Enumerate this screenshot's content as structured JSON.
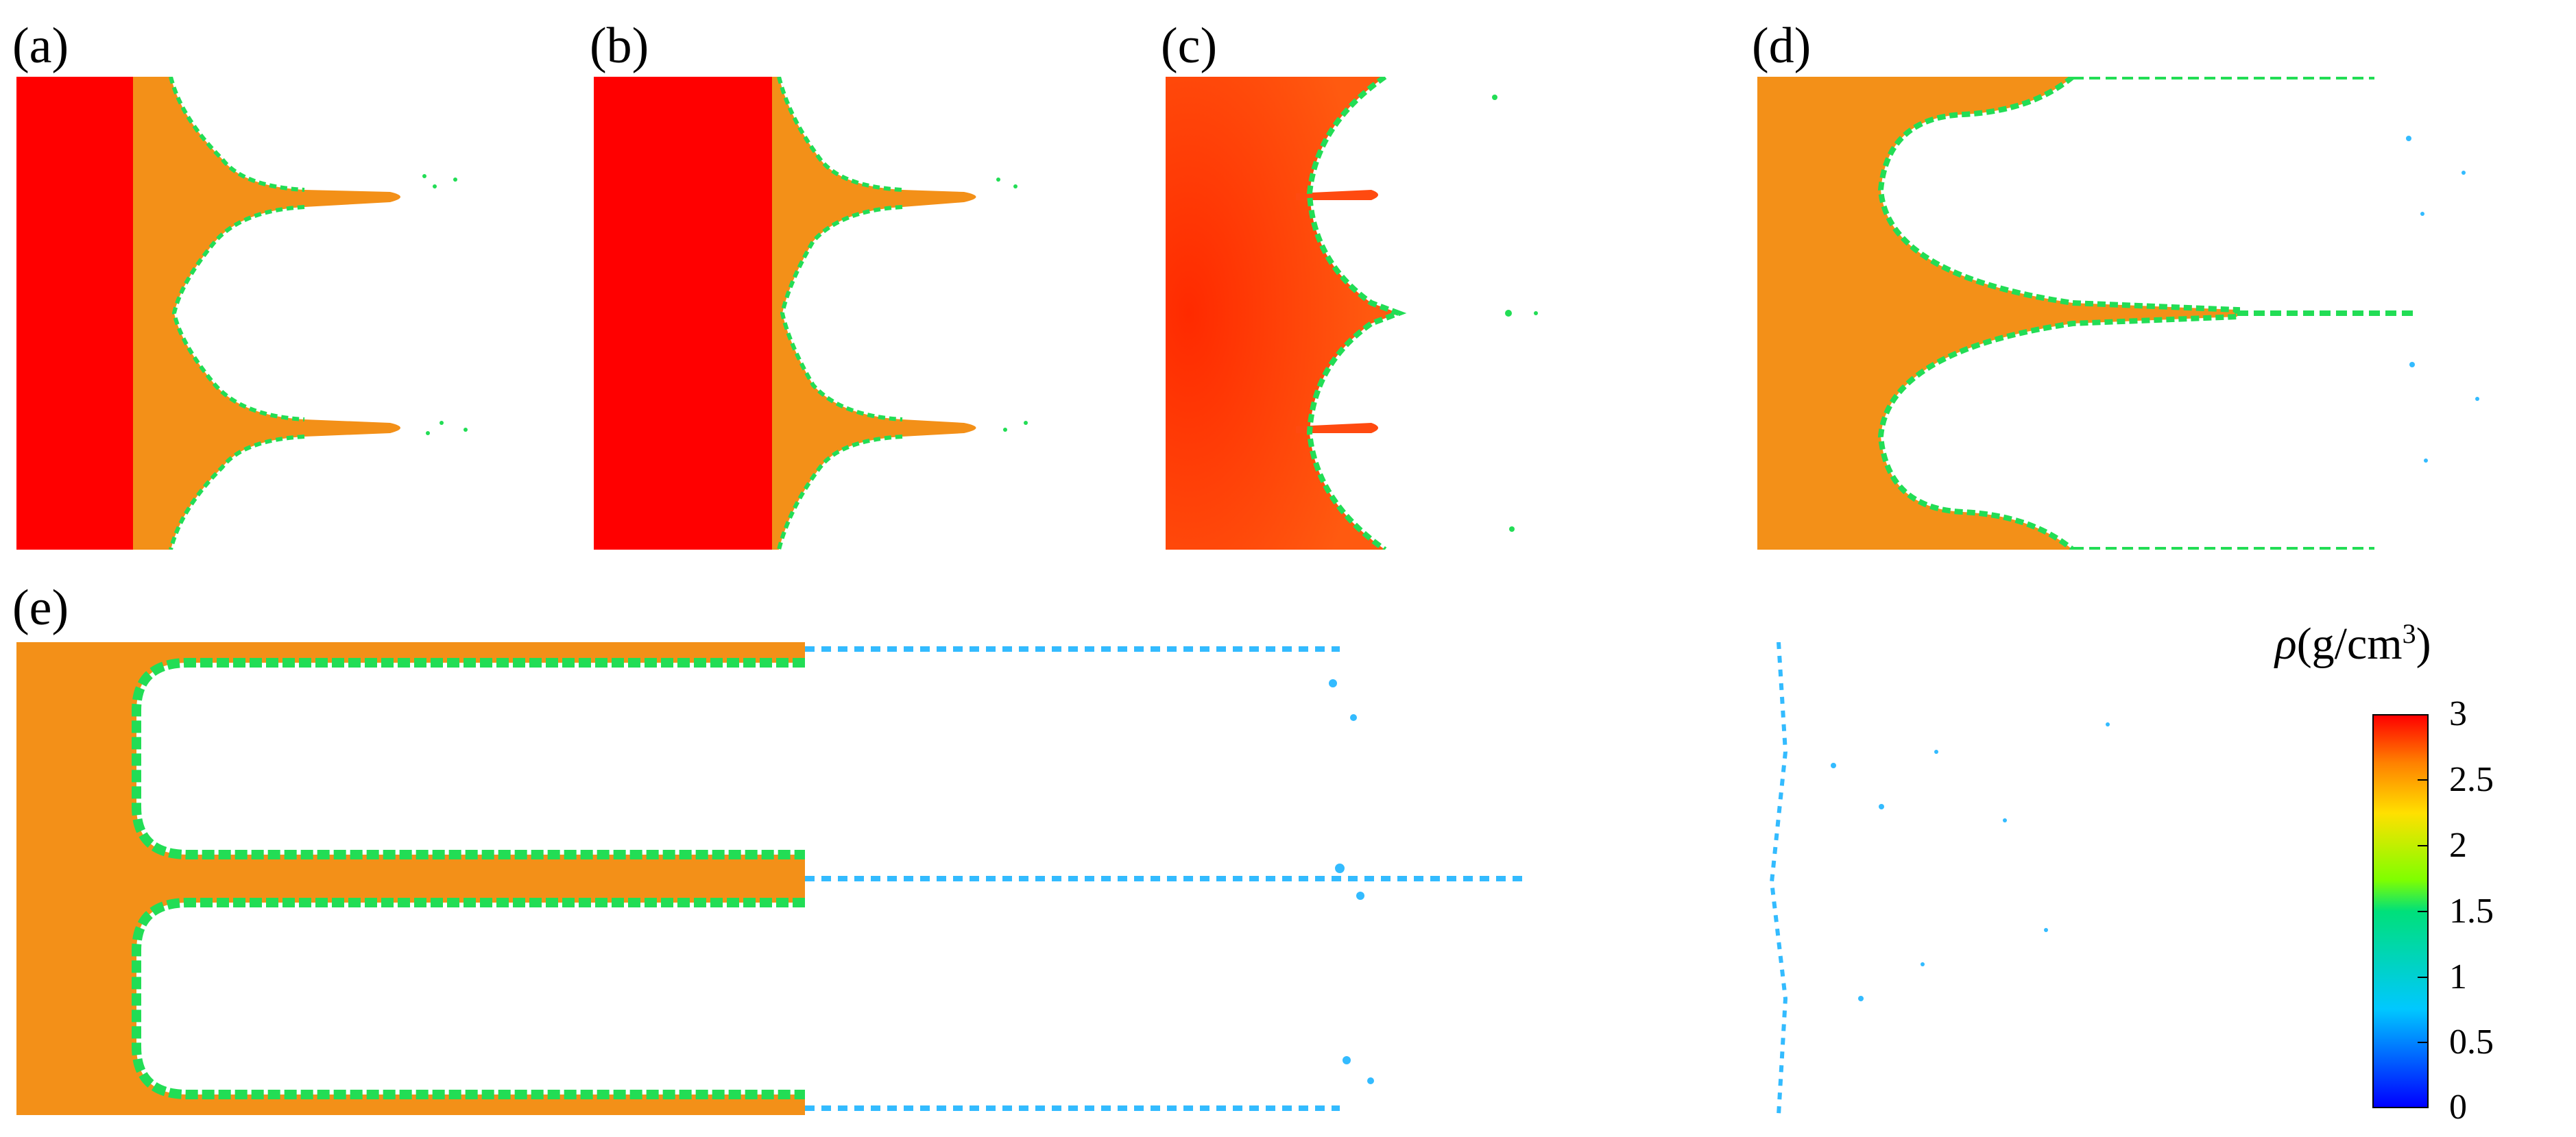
{
  "panels": [
    {
      "label": "(a)"
    },
    {
      "label": "(b)"
    },
    {
      "label": "(c)"
    },
    {
      "label": "(d)"
    },
    {
      "label": "(e)"
    }
  ],
  "colorbar": {
    "symbol": "ρ",
    "unit": "(g/cm",
    "unit_exp": "3",
    "unit_close": ")",
    "ticks": [
      "3",
      "2.5",
      "2",
      "1.5",
      "1",
      "0.5",
      "0"
    ],
    "colors": {
      "max": "#ff0000",
      "high": "#ff8000",
      "mid_high": "#ffe000",
      "mid": "#00e07a",
      "mid_low": "#00c8ff",
      "min": "#0000ff"
    }
  }
}
